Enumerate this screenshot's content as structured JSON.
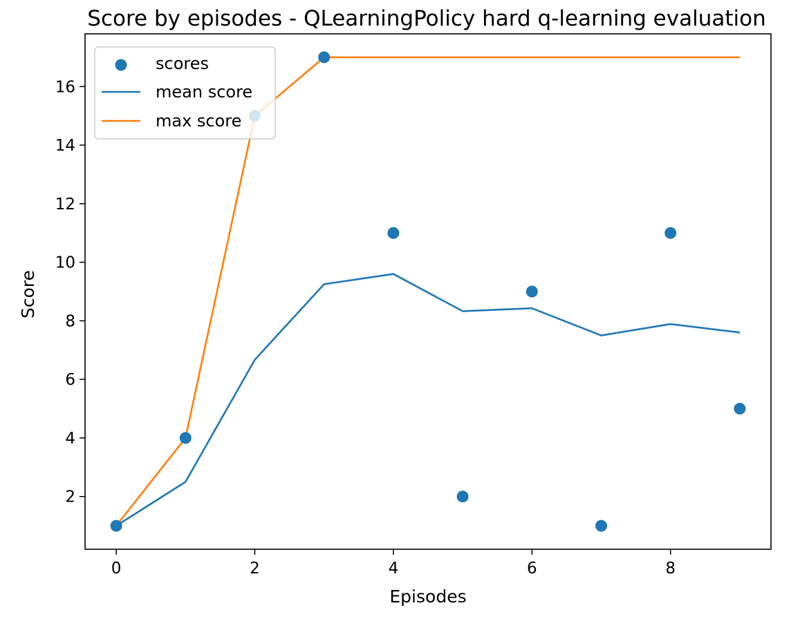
{
  "chart_data": {
    "type": "scatter",
    "title": "Score by episodes - QLearningPolicy hard q-learning evaluation",
    "xlabel": "Episodes",
    "ylabel": "Score",
    "xlim": [
      -0.45,
      9.45
    ],
    "ylim": [
      0.2,
      17.8
    ],
    "xticks": [
      0,
      2,
      4,
      6,
      8
    ],
    "yticks": [
      2,
      4,
      6,
      8,
      10,
      12,
      14,
      16
    ],
    "x": [
      0,
      1,
      2,
      3,
      4,
      5,
      6,
      7,
      8,
      9
    ],
    "series": [
      {
        "name": "scores",
        "kind": "scatter",
        "color": "#1f77b4",
        "values": [
          1,
          4,
          15,
          17,
          11,
          2,
          9,
          1,
          11,
          5
        ]
      },
      {
        "name": "mean score",
        "kind": "line",
        "color": "#1f77b4",
        "values": [
          1,
          2.5,
          6.67,
          9.25,
          9.6,
          8.33,
          8.43,
          7.5,
          7.89,
          7.6
        ]
      },
      {
        "name": "max score",
        "kind": "line",
        "color": "#ff7f0e",
        "values": [
          1,
          4,
          15,
          17,
          17,
          17,
          17,
          17,
          17,
          17
        ]
      }
    ],
    "grid": false,
    "legend": "upper-left"
  }
}
